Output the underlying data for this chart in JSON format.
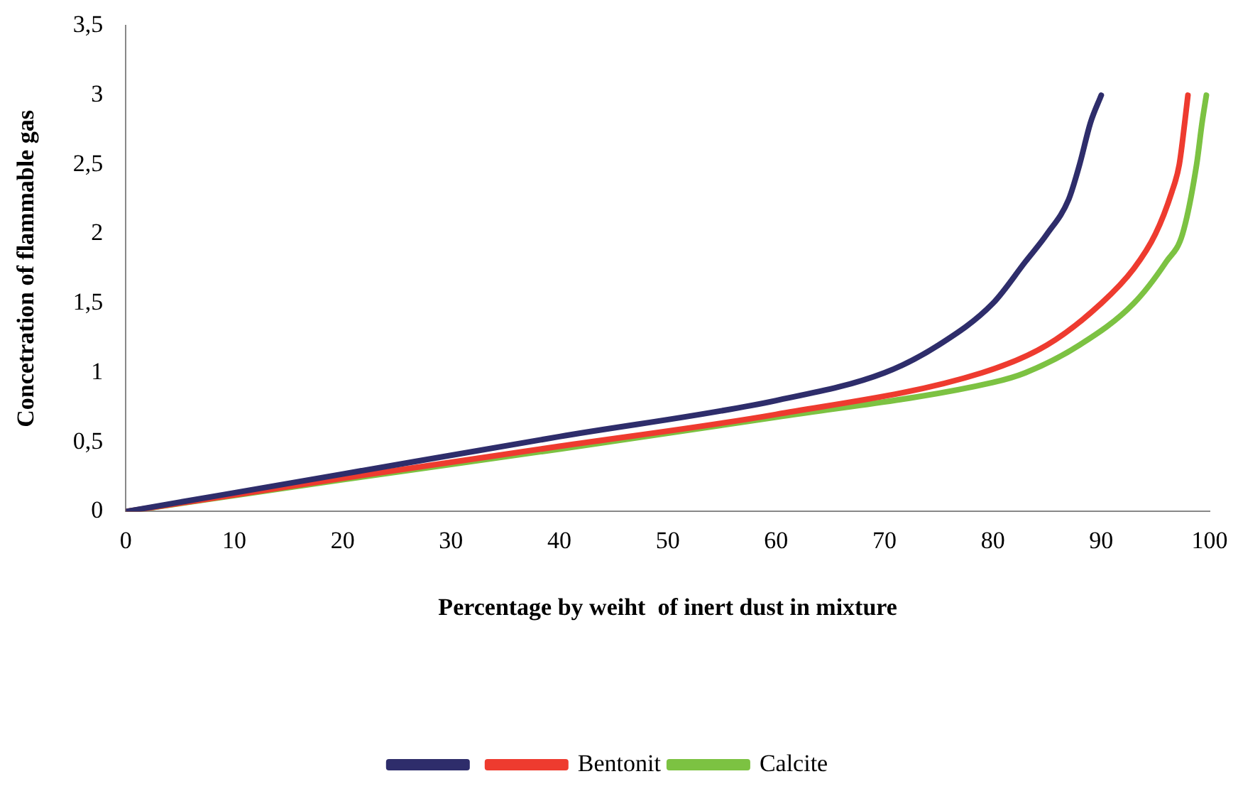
{
  "chart_data": {
    "type": "line",
    "xlabel": "Percentage by weiht  of inert dust in mixture",
    "ylabel": "Concetration of flammable gas",
    "xlim": [
      0,
      100
    ],
    "xticks": [
      0,
      10,
      20,
      30,
      40,
      50,
      60,
      70,
      80,
      90,
      100
    ],
    "ylim": [
      0,
      3.5
    ],
    "yticks": [
      0,
      {
        "value": 0.5,
        "label": "0,5"
      },
      1,
      {
        "value": 1.5,
        "label": "1,5"
      },
      2,
      {
        "value": 2.5,
        "label": "2,5"
      },
      3,
      {
        "value": 3.5,
        "label": "3,5"
      }
    ],
    "grid": false,
    "legend": "bottom",
    "marker": "none",
    "line_style": "solid",
    "series": [
      {
        "color": "#2e2d6b",
        "x": [
          0,
          20,
          40,
          60,
          70,
          75,
          80,
          83,
          85,
          87,
          88,
          89,
          90
        ],
        "values": [
          0,
          0.27,
          0.54,
          0.8,
          1.0,
          1.2,
          1.5,
          1.8,
          2.0,
          2.25,
          2.5,
          2.8,
          3.0
        ]
      },
      {
        "name": "Bentonit",
        "color": "#ee3b2f",
        "x": [
          0,
          20,
          40,
          60,
          79,
          85,
          90,
          93,
          95,
          96.5,
          97.2,
          97.7,
          98
        ],
        "values": [
          0,
          0.24,
          0.47,
          0.7,
          1.0,
          1.2,
          1.5,
          1.75,
          2.0,
          2.3,
          2.5,
          2.8,
          3.0
        ]
      },
      {
        "name": "Calcite",
        "color": "#7cc242",
        "x": [
          0,
          20,
          40,
          60,
          80,
          83,
          88,
          93,
          96,
          97.5,
          98.8,
          99.3,
          99.7
        ],
        "values": [
          0,
          0.23,
          0.45,
          0.68,
          0.93,
          1.0,
          1.2,
          1.5,
          1.8,
          2.0,
          2.5,
          2.8,
          3.0
        ]
      }
    ]
  }
}
